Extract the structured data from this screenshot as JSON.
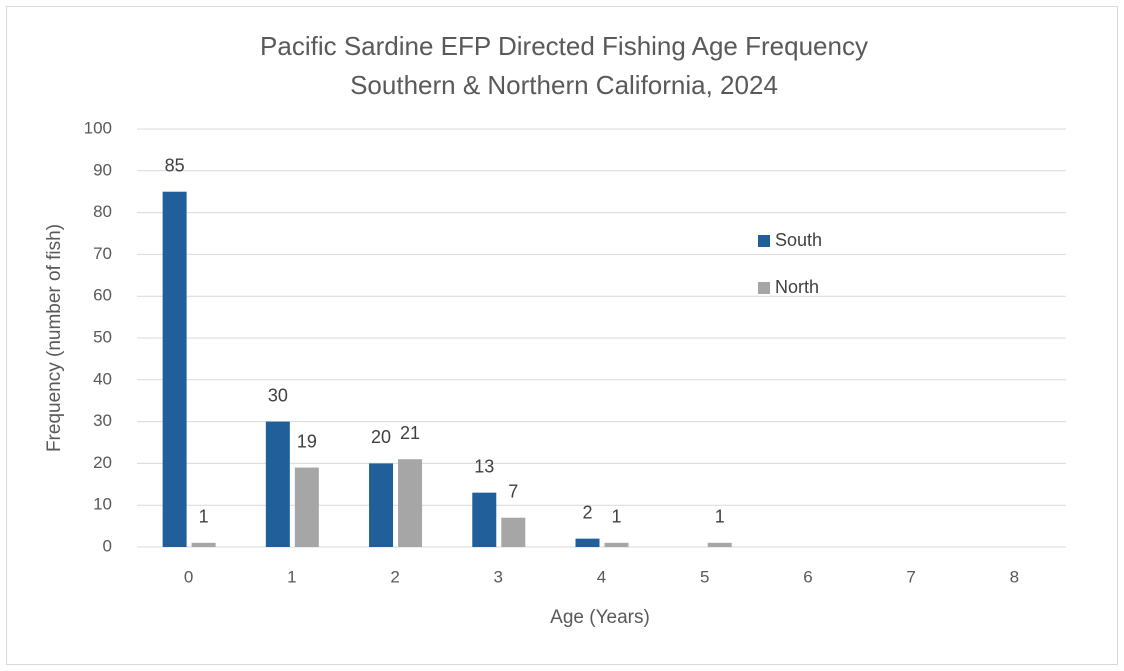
{
  "chart_data": {
    "type": "bar",
    "title": "Pacific Sardine EFP Directed Fishing Age Frequency",
    "subtitle": "Southern & Northern California, 2024",
    "x_label": "Age (Years)",
    "y_label": "Frequency (number of fish)",
    "categories": [
      "0",
      "1",
      "2",
      "3",
      "4",
      "5",
      "6",
      "7",
      "8"
    ],
    "series": [
      {
        "name": "South",
        "color": "#215f9a",
        "values": [
          85,
          30,
          20,
          13,
          2,
          null,
          null,
          null,
          null
        ]
      },
      {
        "name": "North",
        "color": "#a6a6a6",
        "values": [
          1,
          19,
          21,
          7,
          1,
          1,
          null,
          null,
          null
        ]
      }
    ],
    "ylim": [
      0,
      100
    ],
    "yticks": [
      0,
      10,
      20,
      30,
      40,
      50,
      60,
      70,
      80,
      90,
      100
    ],
    "grid": true,
    "legend": "right"
  }
}
